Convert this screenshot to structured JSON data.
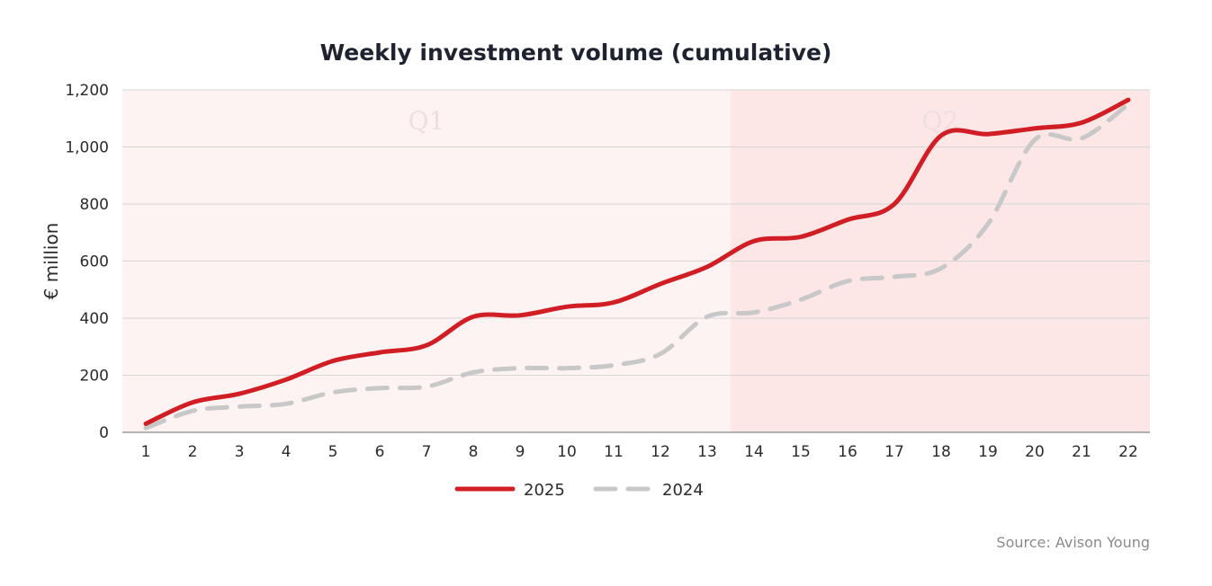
{
  "chart_data": {
    "type": "line",
    "title": "Weekly investment volume (cumulative)",
    "xlabel": "",
    "ylabel": "€ million",
    "x": [
      1,
      2,
      3,
      4,
      5,
      6,
      7,
      8,
      9,
      10,
      11,
      12,
      13,
      14,
      15,
      16,
      17,
      18,
      19,
      20,
      21,
      22
    ],
    "xlim": [
      1,
      22
    ],
    "ylim": [
      0,
      1200
    ],
    "yticks": [
      0,
      200,
      400,
      600,
      800,
      1000,
      1200
    ],
    "ytick_labels": [
      "0",
      "200",
      "400",
      "600",
      "800",
      "1,000",
      "1,200"
    ],
    "grid": true,
    "legend_position": "bottom-center",
    "quarters": [
      {
        "label": "Q1",
        "from_week": 1,
        "to_week": 13,
        "color": "#fdf3f3"
      },
      {
        "label": "Q2",
        "from_week": 14,
        "to_week": 22,
        "color": "#fce6e6"
      }
    ],
    "series": [
      {
        "name": "2025",
        "color": "#d11d24",
        "style": "solid",
        "values": [
          30,
          105,
          135,
          185,
          250,
          280,
          305,
          405,
          410,
          440,
          455,
          520,
          580,
          670,
          685,
          745,
          800,
          1040,
          1045,
          1065,
          1085,
          1165
        ]
      },
      {
        "name": "2024",
        "color": "#c8c8c8",
        "style": "dashed",
        "values": [
          15,
          75,
          90,
          100,
          140,
          155,
          160,
          210,
          225,
          225,
          235,
          275,
          405,
          420,
          465,
          530,
          545,
          575,
          730,
          1025,
          1030,
          1150
        ]
      }
    ],
    "source": "Source: Avison Young"
  }
}
